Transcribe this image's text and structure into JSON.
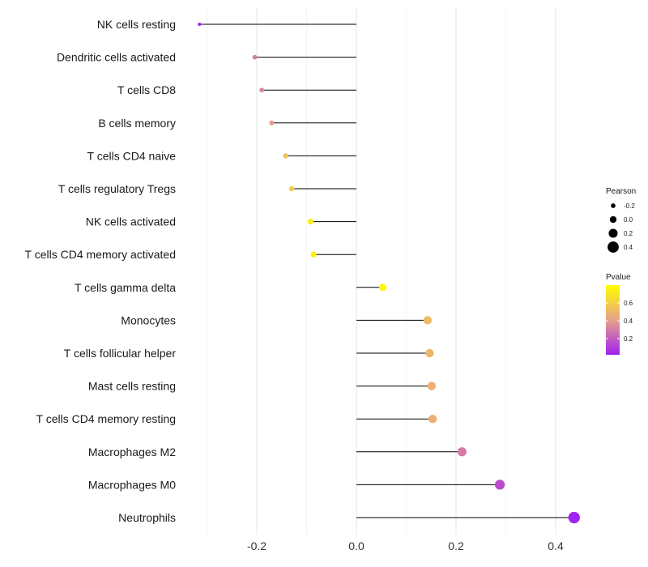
{
  "chart_data": {
    "type": "lollipop",
    "title": "",
    "xlabel": "",
    "ylabel": "",
    "xlim": [
      -0.35,
      0.45
    ],
    "xticks": [
      -0.2,
      0.0,
      0.2,
      0.4
    ],
    "xtick_labels": [
      "-0.2",
      "0.0",
      "0.2",
      "0.4"
    ],
    "minor_grid": [
      -0.3,
      -0.1,
      0.1,
      0.3
    ],
    "grid": true,
    "categories": [
      "NK cells resting",
      "Dendritic cells activated",
      "T cells CD8",
      "B cells memory",
      "T cells CD4 naive",
      "T cells regulatory  Tregs ",
      "NK cells activated",
      "T cells CD4 memory activated",
      "T cells gamma delta",
      "Monocytes",
      "T cells follicular helper",
      "Mast cells resting",
      "T cells CD4 memory resting",
      "Macrophages M2",
      "Macrophages M0",
      "Neutrophils"
    ],
    "pearson": [
      -0.315,
      -0.204,
      -0.19,
      -0.17,
      -0.142,
      -0.13,
      -0.092,
      -0.086,
      0.053,
      0.143,
      0.147,
      0.151,
      0.153,
      0.212,
      0.288,
      0.437
    ],
    "pvalue": [
      0.02,
      0.3,
      0.33,
      0.4,
      0.55,
      0.6,
      0.72,
      0.74,
      0.78,
      0.52,
      0.5,
      0.48,
      0.47,
      0.3,
      0.15,
      0.03
    ],
    "legend": {
      "placement": "right",
      "size": {
        "title": "Pearson",
        "values": [
          -0.2,
          0.0,
          0.2,
          0.4
        ],
        "labels": [
          "-0.2",
          "0.0",
          "0.2",
          "0.4"
        ]
      },
      "color": {
        "title": "Pvalue",
        "range": [
          0.02,
          0.8
        ],
        "ticks": [
          0.2,
          0.4,
          0.6
        ],
        "tick_labels": [
          "0.2",
          "0.4",
          "0.6"
        ],
        "low_color": "#a020f0",
        "mid_color": "#e8a08a",
        "high_color": "#ffff00"
      }
    }
  }
}
